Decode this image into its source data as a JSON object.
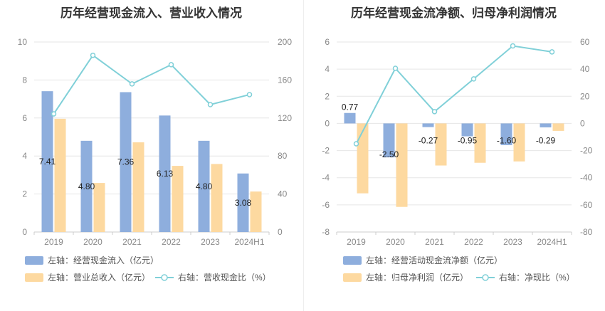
{
  "colors": {
    "blue_bar": "#8eaedd",
    "orange_bar": "#fdd9a0",
    "line": "#80d0d8",
    "grid": "#e6e6e6",
    "axis": "#cccccc"
  },
  "chart_data": [
    {
      "type": "bar",
      "title": "历年经营现金流入、营业收入情况",
      "categories": [
        "2019",
        "2020",
        "2021",
        "2022",
        "2023",
        "2024H1"
      ],
      "y_left": {
        "min": 0,
        "max": 10,
        "ticks": [
          "0",
          "2",
          "4",
          "6",
          "8",
          "10"
        ]
      },
      "y_right": {
        "min": 0,
        "max": 200,
        "ticks": [
          "0",
          "40",
          "80",
          "120",
          "160",
          "200"
        ]
      },
      "series": [
        {
          "name": "左轴：经营现金流入（亿元）",
          "kind": "bar",
          "axis": "left",
          "color": "#8eaedd",
          "values": [
            7.41,
            4.8,
            7.36,
            6.13,
            4.8,
            3.08
          ],
          "labels": [
            "7.41",
            "4.80",
            "7.36",
            "6.13",
            "4.80",
            "3.08"
          ]
        },
        {
          "name": "左轴：营业总收入（亿元）",
          "kind": "bar",
          "axis": "left",
          "color": "#fdd9a0",
          "values": [
            5.96,
            2.58,
            4.72,
            3.48,
            3.58,
            2.13
          ]
        },
        {
          "name": "右轴：营收现金比（%）",
          "kind": "line",
          "axis": "right",
          "color": "#80d0d8",
          "values": [
            124.3,
            186.0,
            155.9,
            176.1,
            134.1,
            144.6
          ]
        }
      ],
      "legend": "bottom",
      "grid": true
    },
    {
      "type": "bar",
      "title": "历年经营现金流净额、归母净利润情况",
      "categories": [
        "2019",
        "2020",
        "2021",
        "2022",
        "2023",
        "2024H1"
      ],
      "y_left": {
        "min": -8,
        "max": 6,
        "ticks": [
          "-8",
          "-6",
          "-4",
          "-2",
          "0",
          "2",
          "4",
          "6"
        ]
      },
      "y_right": {
        "min": -80,
        "max": 60,
        "ticks": [
          "-80",
          "-60",
          "-40",
          "-20",
          "0",
          "20",
          "40",
          "60"
        ]
      },
      "series": [
        {
          "name": "左轴：经营活动现金流净额（亿元）",
          "kind": "bar",
          "axis": "left",
          "color": "#8eaedd",
          "values": [
            0.77,
            -2.5,
            -0.27,
            -0.95,
            -1.6,
            -0.29
          ],
          "labels": [
            "0.77",
            "-2.50",
            "-0.27",
            "-0.95",
            "-1.60",
            "-0.29"
          ]
        },
        {
          "name": "左轴：归母净利润（亿元）",
          "kind": "bar",
          "axis": "left",
          "color": "#fdd9a0",
          "values": [
            -5.15,
            -6.15,
            -3.1,
            -2.9,
            -2.8,
            -0.55
          ]
        },
        {
          "name": "右轴：净现比（%）",
          "kind": "line",
          "axis": "right",
          "color": "#80d0d8",
          "values": [
            -15.0,
            40.6,
            8.7,
            32.8,
            57.1,
            52.7
          ]
        }
      ],
      "legend": "bottom",
      "grid": true
    }
  ]
}
